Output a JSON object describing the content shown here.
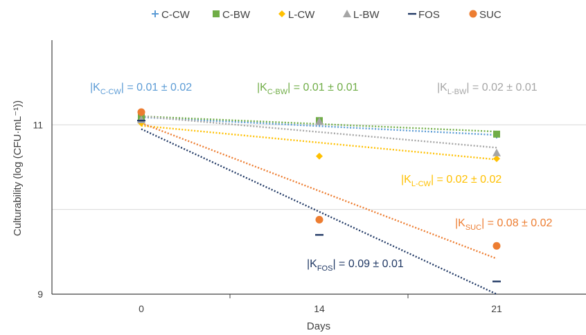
{
  "chart_data": {
    "type": "scatter",
    "xlabel": "Days",
    "ylabel": "Culturability (log (CFU·mL⁻¹))",
    "x_ticks": [
      "0",
      "14",
      "21"
    ],
    "y_ticks": [
      "9",
      "11"
    ],
    "ylim": [
      9,
      12
    ],
    "grid": "horizontal",
    "legend_position": "top",
    "series": [
      {
        "name": "C-CW",
        "marker": "plus",
        "color": "#5b9bd5",
        "points": [
          {
            "x": "0",
            "y": 11.07
          },
          {
            "x": "14",
            "y": 11.03
          },
          {
            "x": "21",
            "y": 10.88
          }
        ],
        "trend": [
          11.09,
          10.88
        ]
      },
      {
        "name": "C-BW",
        "marker": "square",
        "color": "#70ad47",
        "points": [
          {
            "x": "0",
            "y": 11.09
          },
          {
            "x": "14",
            "y": 11.05
          },
          {
            "x": "21",
            "y": 10.89
          }
        ],
        "trend": [
          11.1,
          10.92
        ]
      },
      {
        "name": "L-CW",
        "marker": "diamond",
        "color": "#ffc000",
        "points": [
          {
            "x": "0",
            "y": 11.02
          },
          {
            "x": "14",
            "y": 10.63
          },
          {
            "x": "21",
            "y": 10.6
          }
        ],
        "trend": [
          10.99,
          10.59
        ]
      },
      {
        "name": "L-BW",
        "marker": "triangle",
        "color": "#a5a5a5",
        "points": [
          {
            "x": "0",
            "y": 11.06
          },
          {
            "x": "14",
            "y": 11.04
          },
          {
            "x": "21",
            "y": 10.67
          }
        ],
        "trend": [
          11.1,
          10.73
        ]
      },
      {
        "name": "FOS",
        "marker": "dash",
        "color": "#203864",
        "points": [
          {
            "x": "0",
            "y": 11.05
          },
          {
            "x": "14",
            "y": 9.7
          },
          {
            "x": "21",
            "y": 9.15
          }
        ],
        "trend": [
          10.95,
          9.0
        ]
      },
      {
        "name": "SUC",
        "marker": "circle",
        "color": "#ed7d31",
        "points": [
          {
            "x": "0",
            "y": 11.15
          },
          {
            "x": "14",
            "y": 9.88
          },
          {
            "x": "21",
            "y": 9.57
          }
        ],
        "trend": [
          11.02,
          9.42
        ]
      }
    ],
    "annotations": [
      {
        "prefix": "|K",
        "sub": "C-CW",
        "suffix": "| = 0.01 ± 0.02",
        "color": "#5b9bd5"
      },
      {
        "prefix": "|K",
        "sub": "C-BW",
        "suffix": "| = 0.01 ± 0.01",
        "color": "#70ad47"
      },
      {
        "prefix": "|K",
        "sub": "L-BW",
        "suffix": "| = 0.02 ± 0.01",
        "color": "#a5a5a5"
      },
      {
        "prefix": "|K",
        "sub": "L-CW",
        "suffix": "| = 0.02 ± 0.02",
        "color": "#ffc000"
      },
      {
        "prefix": "|K",
        "sub": "SUC",
        "suffix": "| = 0.08 ± 0.02",
        "color": "#ed7d31"
      },
      {
        "prefix": "|K",
        "sub": "FOS",
        "suffix": "| = 0.09 ± 0.01",
        "color": "#203864"
      }
    ]
  }
}
